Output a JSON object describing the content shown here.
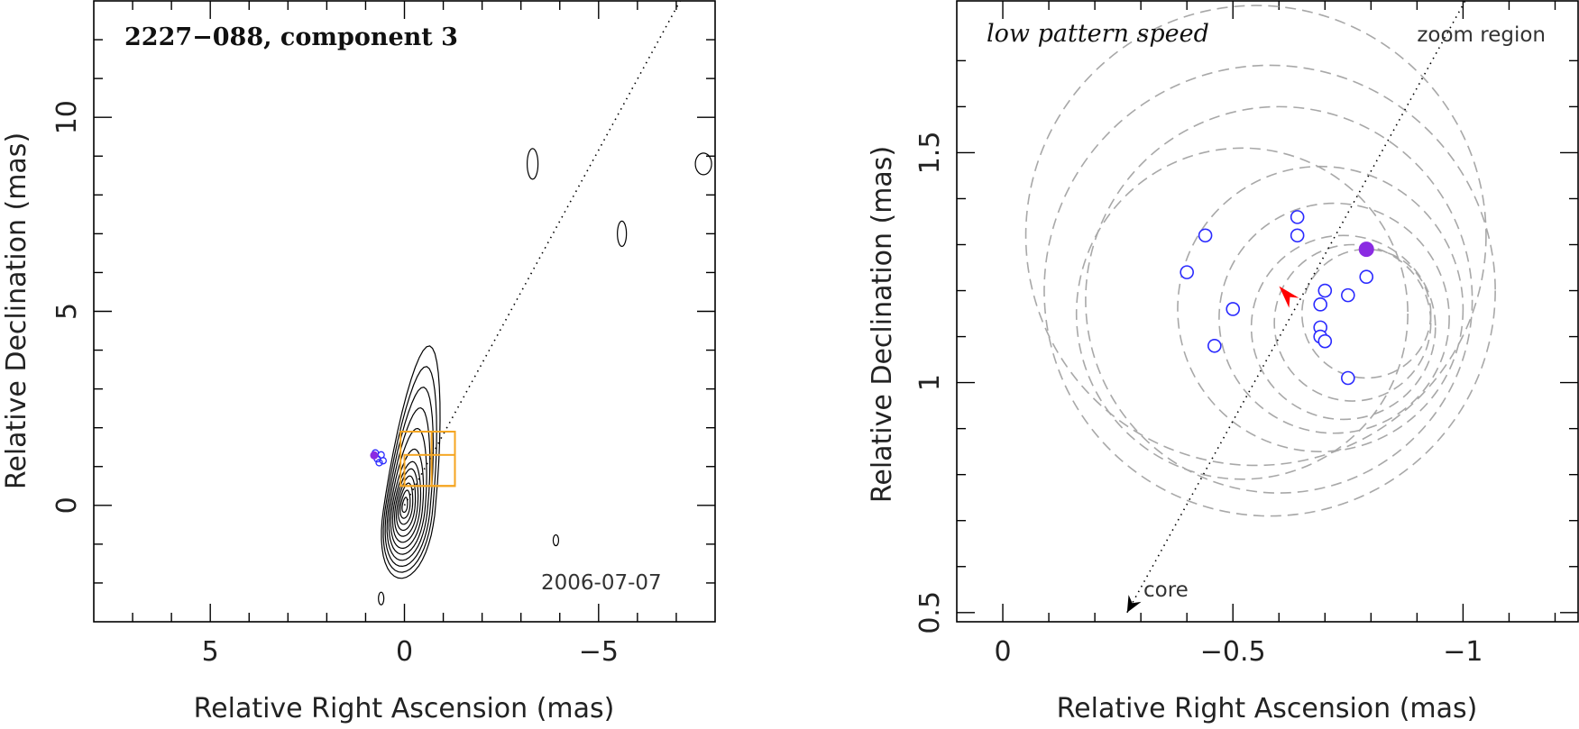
{
  "chart_data": [
    {
      "type": "contour",
      "title": "2227−088, component 3",
      "epoch": "2006-07-07",
      "xlabel": "Relative Right Ascension (mas)",
      "ylabel": "Relative Declination (mas)",
      "xlim": [
        8,
        -8
      ],
      "ylim": [
        -3,
        13
      ],
      "xticks": [
        5,
        0,
        -5
      ],
      "xtick_labels": [
        "5",
        "0",
        "−5"
      ],
      "yticks": [
        0,
        5,
        10
      ],
      "ytick_labels": [
        "0",
        "5",
        "10"
      ],
      "contour_levels": 12,
      "trajectory_line": {
        "from": [
          0,
          0
        ],
        "to": [
          -7.1,
          13
        ]
      },
      "zoom_boxes": [
        {
          "x": [
            0.1,
            -1.3
          ],
          "y": [
            0.5,
            1.9
          ]
        },
        {
          "x": [
            0.0,
            -1.3
          ],
          "y": [
            0.5,
            1.3
          ]
        },
        {
          "x": [
            -0.7,
            -1.3
          ],
          "y": [
            0.5,
            1.9
          ]
        }
      ],
      "open_points": [
        {
          "x": 0.6,
          "y": 1.3
        },
        {
          "x": 0.7,
          "y": 1.2
        },
        {
          "x": 0.55,
          "y": 1.15
        },
        {
          "x": 0.75,
          "y": 1.35
        },
        {
          "x": 0.65,
          "y": 1.1
        }
      ],
      "filled_point": {
        "x": 0.78,
        "y": 1.29
      },
      "colors": {
        "contour": "#000000",
        "zoom_box": "#f5a623",
        "points": "#2a2aff",
        "filled": "#8a2be2",
        "arrow": "#ff0000"
      }
    },
    {
      "type": "scatter",
      "title": "low pattern speed",
      "corner_label": "zoom region",
      "core_label": "core",
      "xlabel": "Relative Right Ascension (mas)",
      "ylabel": "Relative Declination (mas)",
      "xlim": [
        0.1,
        -1.25
      ],
      "ylim": [
        0.48,
        1.83
      ],
      "xticks": [
        0,
        -0.5,
        -1
      ],
      "xtick_labels": [
        "0",
        "−0.5",
        "−1"
      ],
      "yticks": [
        0.5,
        1,
        1.5
      ],
      "ytick_labels": [
        "0.5",
        "1",
        "1.5"
      ],
      "open_points": [
        {
          "x": -0.64,
          "y": 1.36
        },
        {
          "x": -0.64,
          "y": 1.32
        },
        {
          "x": -0.44,
          "y": 1.32
        },
        {
          "x": -0.4,
          "y": 1.24
        },
        {
          "x": -0.79,
          "y": 1.23
        },
        {
          "x": -0.7,
          "y": 1.2
        },
        {
          "x": -0.75,
          "y": 1.19
        },
        {
          "x": -0.69,
          "y": 1.17
        },
        {
          "x": -0.5,
          "y": 1.16
        },
        {
          "x": -0.69,
          "y": 1.12
        },
        {
          "x": -0.69,
          "y": 1.1
        },
        {
          "x": -0.7,
          "y": 1.09
        },
        {
          "x": -0.46,
          "y": 1.08
        },
        {
          "x": -0.75,
          "y": 1.01
        }
      ],
      "filled_point": {
        "x": -0.79,
        "y": 1.29
      },
      "arrow_point": {
        "x": -0.62,
        "y": 1.19
      },
      "trajectory_line": {
        "from": [
          -0.27,
          0.5
        ],
        "to": [
          -1.01,
          1.84
        ]
      },
      "dashed_circles": [
        {
          "cx": -0.55,
          "cy": 1.32,
          "r": 0.5
        },
        {
          "cx": -0.58,
          "cy": 1.2,
          "r": 0.49
        },
        {
          "cx": -0.6,
          "cy": 1.18,
          "r": 0.42
        },
        {
          "cx": -0.52,
          "cy": 1.15,
          "r": 0.36
        },
        {
          "cx": -0.69,
          "cy": 1.16,
          "r": 0.31
        },
        {
          "cx": -0.72,
          "cy": 1.14,
          "r": 0.25
        },
        {
          "cx": -0.74,
          "cy": 1.12,
          "r": 0.2
        },
        {
          "cx": -0.76,
          "cy": 1.13,
          "r": 0.17
        },
        {
          "cx": -0.79,
          "cy": 1.15,
          "r": 0.14
        }
      ],
      "colors": {
        "points": "#2a2aff",
        "filled": "#8a2be2",
        "arrow": "#ff0000",
        "circles": "#a8a8a8"
      }
    }
  ]
}
